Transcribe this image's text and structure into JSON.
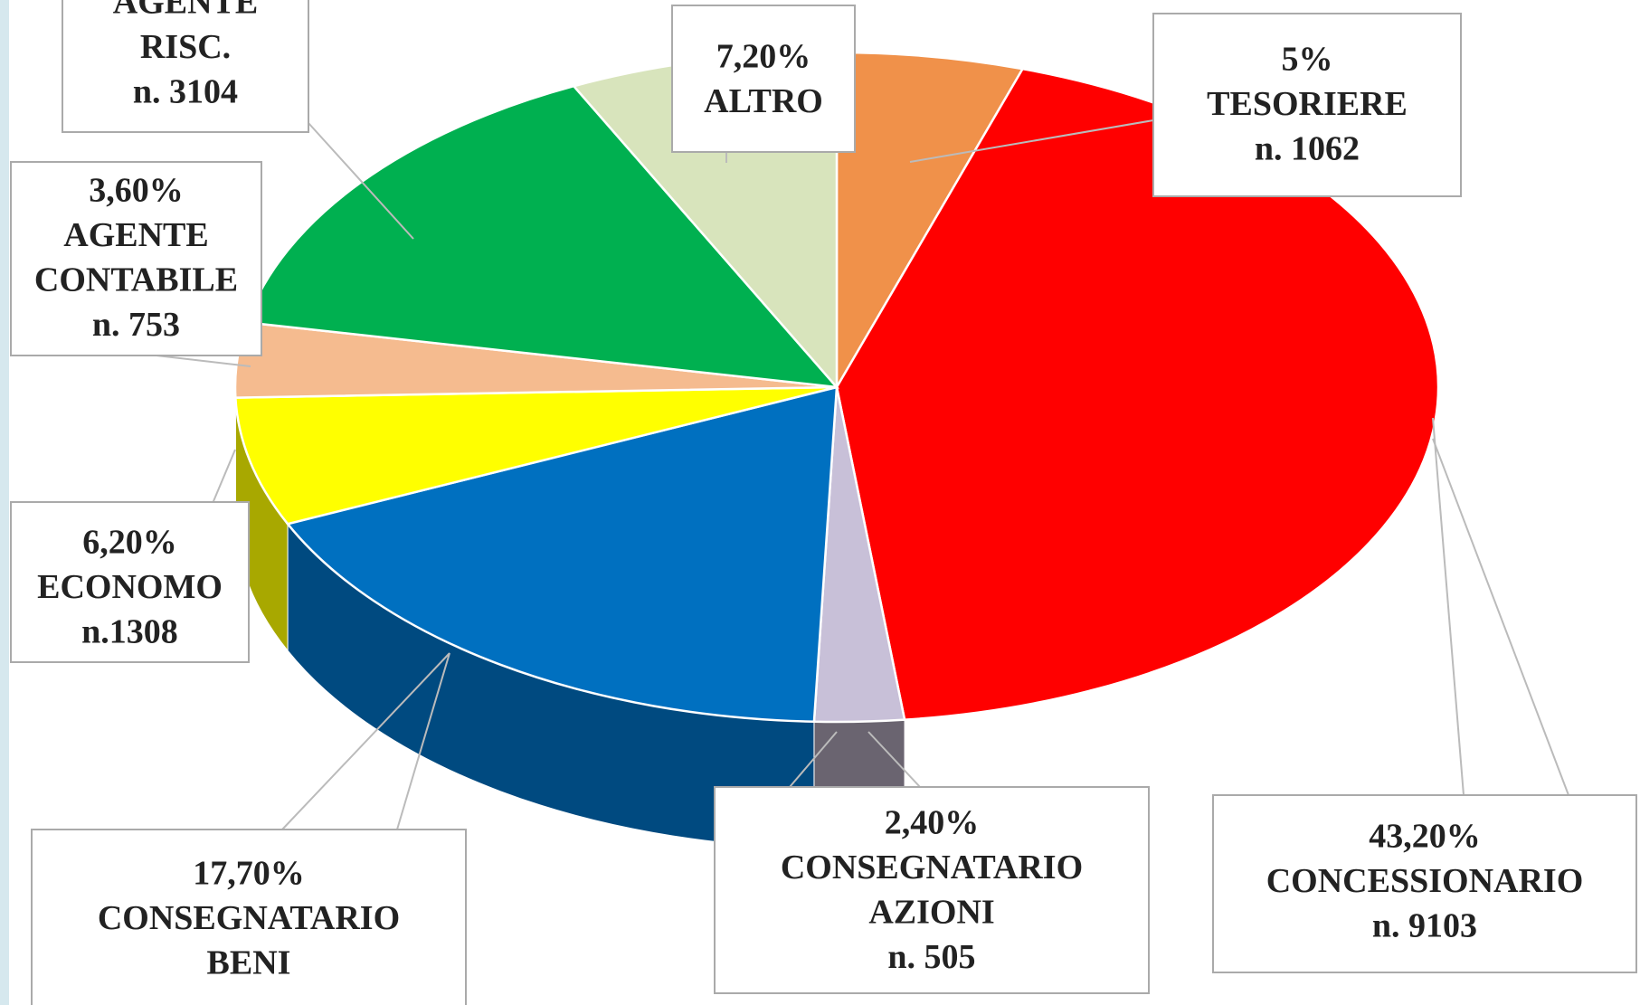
{
  "chart_data": {
    "type": "pie3d",
    "categories": [
      [
        "TESORIERE"
      ],
      [
        "CONCESSIONARIO"
      ],
      [
        "CONSEGNATARIO",
        "AZIONI"
      ],
      [
        "CONSEGNATARIO",
        "BENI"
      ],
      [
        "ECONOMO"
      ],
      [
        "AGENTE",
        "CONTABILE"
      ],
      [
        "AGENTE",
        "RISC."
      ],
      [
        "ALTRO"
      ]
    ],
    "values": [
      5,
      43.2,
      2.4,
      17.7,
      6.2,
      3.6,
      14.7,
      7.2
    ],
    "value_labels": [
      "5%",
      "43,20%",
      "2,40%",
      "17,70%",
      "6,20%",
      "3,60%",
      null,
      "7,20%"
    ],
    "counts": [
      "n. 1062",
      "n. 9103",
      "n. 505",
      null,
      "n.1308",
      "n. 753",
      "n. 3104",
      null
    ],
    "colors": [
      "#f0914a",
      "#ff0000",
      "#c8c0d8",
      "#0070c0",
      "#ffff00",
      "#f5bb8f",
      "#00b050",
      "#d8e4bc"
    ],
    "side_colors": [
      "#8a4a1e",
      "#6b0000",
      "#6a6470",
      "#004a80",
      "#a8a800",
      "#9a6a48",
      "#006a30",
      "#8a9470"
    ]
  }
}
